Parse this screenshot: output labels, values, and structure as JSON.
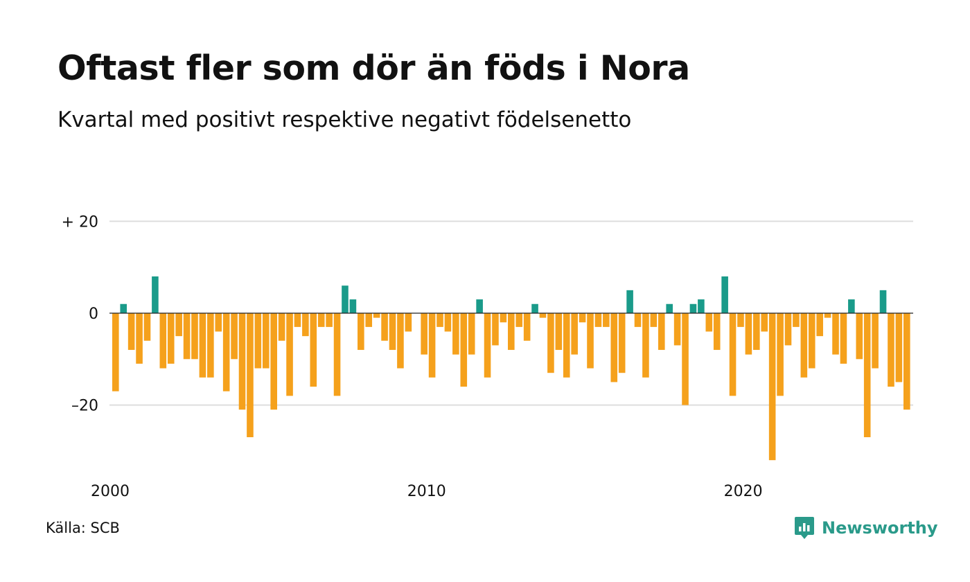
{
  "title": "Oftast fler som dör än föds i Nora",
  "subtitle": "Kvartal med positivt respektive negativt födelsenetto",
  "source": "Källa: SCB",
  "brand": {
    "name": "Newsworthy",
    "icon": "newsworthy-logo-icon",
    "color": "#2a9a8a"
  },
  "colors": {
    "positive": "#1a9b8a",
    "negative": "#f5a11c",
    "grid": "#dddddd",
    "zero_line": "#222222"
  },
  "chart_data": {
    "type": "bar",
    "title": "Oftast fler som dör än föds i Nora",
    "subtitle": "Kvartal med positivt respektive negativt födelsenetto",
    "xlabel": "",
    "ylabel": "",
    "x_tick_labels": [
      "2000",
      "2010",
      "2020"
    ],
    "y_tick_labels": [
      "+ 20",
      "0",
      "–20"
    ],
    "y_ticks": [
      20,
      0,
      -20
    ],
    "ylim": [
      -34,
      20
    ],
    "grid": true,
    "legend": "none",
    "period": "quarterly, 2000 Q1 – 2025 Q2",
    "categories": [
      "2000 Q1",
      "2000 Q2",
      "2000 Q3",
      "2000 Q4",
      "2001 Q1",
      "2001 Q2",
      "2001 Q3",
      "2001 Q4",
      "2002 Q1",
      "2002 Q2",
      "2002 Q3",
      "2002 Q4",
      "2003 Q1",
      "2003 Q2",
      "2003 Q3",
      "2003 Q4",
      "2004 Q1",
      "2004 Q2",
      "2004 Q3",
      "2004 Q4",
      "2005 Q1",
      "2005 Q2",
      "2005 Q3",
      "2005 Q4",
      "2006 Q1",
      "2006 Q2",
      "2006 Q3",
      "2006 Q4",
      "2007 Q1",
      "2007 Q2",
      "2007 Q3",
      "2007 Q4",
      "2008 Q1",
      "2008 Q2",
      "2008 Q3",
      "2008 Q4",
      "2009 Q1",
      "2009 Q2",
      "2009 Q3",
      "2009 Q4",
      "2010 Q1",
      "2010 Q2",
      "2010 Q3",
      "2010 Q4",
      "2011 Q1",
      "2011 Q2",
      "2011 Q3",
      "2011 Q4",
      "2012 Q1",
      "2012 Q2",
      "2012 Q3",
      "2012 Q4",
      "2013 Q1",
      "2013 Q2",
      "2013 Q3",
      "2013 Q4",
      "2014 Q1",
      "2014 Q2",
      "2014 Q3",
      "2014 Q4",
      "2015 Q1",
      "2015 Q2",
      "2015 Q3",
      "2015 Q4",
      "2016 Q1",
      "2016 Q2",
      "2016 Q3",
      "2016 Q4",
      "2017 Q1",
      "2017 Q2",
      "2017 Q3",
      "2017 Q4",
      "2018 Q1",
      "2018 Q2",
      "2018 Q3",
      "2018 Q4",
      "2019 Q1",
      "2019 Q2",
      "2019 Q3",
      "2019 Q4",
      "2020 Q1",
      "2020 Q2",
      "2020 Q3",
      "2020 Q4",
      "2021 Q1",
      "2021 Q2",
      "2021 Q3",
      "2021 Q4",
      "2022 Q1",
      "2022 Q2",
      "2022 Q3",
      "2022 Q4",
      "2023 Q1",
      "2023 Q2",
      "2023 Q3",
      "2023 Q4",
      "2024 Q1",
      "2024 Q2",
      "2024 Q3",
      "2024 Q4",
      "2025 Q1",
      "2025 Q2"
    ],
    "values": [
      -17,
      2,
      -8,
      -11,
      -6,
      8,
      -12,
      -11,
      -5,
      -10,
      -10,
      -14,
      -14,
      -4,
      -17,
      -10,
      -21,
      -27,
      -12,
      -12,
      -21,
      -6,
      -18,
      -3,
      -5,
      -16,
      -3,
      -3,
      -18,
      6,
      3,
      -8,
      -3,
      -1,
      -6,
      -8,
      -12,
      -4,
      0,
      -9,
      -14,
      -3,
      -4,
      -9,
      -16,
      -9,
      3,
      -14,
      -7,
      -2,
      -8,
      -3,
      -6,
      2,
      -1,
      -13,
      -8,
      -14,
      -9,
      -2,
      -12,
      -3,
      -3,
      -15,
      -13,
      5,
      -3,
      -14,
      -3,
      -8,
      2,
      -7,
      -20,
      2,
      3,
      -4,
      -8,
      8,
      -18,
      -3,
      -9,
      -8,
      -4,
      -32,
      -18,
      -7,
      -3,
      -14,
      -12,
      -5,
      -1,
      -9,
      -11,
      3,
      -10,
      -27,
      -12,
      5,
      -16,
      -15,
      -21,
      0
    ]
  }
}
